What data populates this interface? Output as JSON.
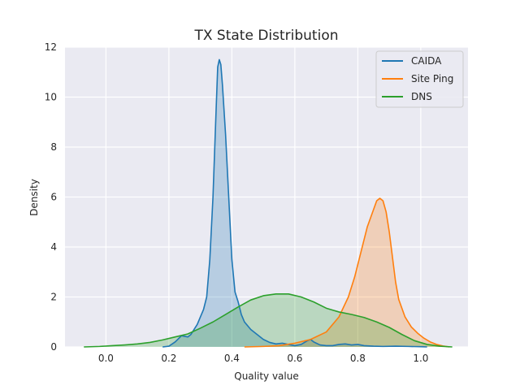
{
  "chart_data": {
    "type": "area",
    "title": "TX State Distribution",
    "xlabel": "Quality value",
    "ylabel": "Density",
    "xlim": [
      -0.13,
      1.15
    ],
    "ylim": [
      0,
      12
    ],
    "x_ticks": [
      "0.0",
      "0.2",
      "0.4",
      "0.6",
      "0.8",
      "1.0"
    ],
    "y_ticks": [
      "0",
      "2",
      "4",
      "6",
      "8",
      "10",
      "12"
    ],
    "grid": true,
    "legend_position": "top-right",
    "style": "seaborn darkgrid, filled KDE curves",
    "series": [
      {
        "name": "CAIDA",
        "color": "#1f77b4",
        "points": [
          [
            0.18,
            0.0
          ],
          [
            0.2,
            0.03
          ],
          [
            0.22,
            0.2
          ],
          [
            0.24,
            0.45
          ],
          [
            0.26,
            0.4
          ],
          [
            0.27,
            0.5
          ],
          [
            0.28,
            0.7
          ],
          [
            0.29,
            0.9
          ],
          [
            0.3,
            1.2
          ],
          [
            0.31,
            1.5
          ],
          [
            0.32,
            2.0
          ],
          [
            0.33,
            3.5
          ],
          [
            0.34,
            6.0
          ],
          [
            0.35,
            9.5
          ],
          [
            0.355,
            11.2
          ],
          [
            0.36,
            11.5
          ],
          [
            0.365,
            11.3
          ],
          [
            0.37,
            10.5
          ],
          [
            0.38,
            8.5
          ],
          [
            0.39,
            6.0
          ],
          [
            0.4,
            3.5
          ],
          [
            0.41,
            2.2
          ],
          [
            0.42,
            1.8
          ],
          [
            0.43,
            1.3
          ],
          [
            0.44,
            1.0
          ],
          [
            0.46,
            0.7
          ],
          [
            0.48,
            0.5
          ],
          [
            0.5,
            0.3
          ],
          [
            0.52,
            0.18
          ],
          [
            0.54,
            0.12
          ],
          [
            0.56,
            0.15
          ],
          [
            0.58,
            0.1
          ],
          [
            0.6,
            0.05
          ],
          [
            0.62,
            0.1
          ],
          [
            0.64,
            0.25
          ],
          [
            0.65,
            0.3
          ],
          [
            0.66,
            0.2
          ],
          [
            0.68,
            0.08
          ],
          [
            0.7,
            0.05
          ],
          [
            0.72,
            0.05
          ],
          [
            0.74,
            0.1
          ],
          [
            0.76,
            0.12
          ],
          [
            0.78,
            0.08
          ],
          [
            0.8,
            0.1
          ],
          [
            0.82,
            0.05
          ],
          [
            0.85,
            0.03
          ],
          [
            0.88,
            0.02
          ],
          [
            0.92,
            0.03
          ],
          [
            0.96,
            0.02
          ],
          [
            1.0,
            0.01
          ],
          [
            1.02,
            0.0
          ]
        ]
      },
      {
        "name": "Site Ping",
        "color": "#ff7f0e",
        "points": [
          [
            0.44,
            0.0
          ],
          [
            0.5,
            0.02
          ],
          [
            0.55,
            0.05
          ],
          [
            0.6,
            0.15
          ],
          [
            0.65,
            0.3
          ],
          [
            0.7,
            0.6
          ],
          [
            0.74,
            1.2
          ],
          [
            0.77,
            2.0
          ],
          [
            0.79,
            2.8
          ],
          [
            0.81,
            3.8
          ],
          [
            0.83,
            4.8
          ],
          [
            0.85,
            5.5
          ],
          [
            0.86,
            5.85
          ],
          [
            0.87,
            5.95
          ],
          [
            0.88,
            5.85
          ],
          [
            0.89,
            5.4
          ],
          [
            0.9,
            4.6
          ],
          [
            0.91,
            3.6
          ],
          [
            0.92,
            2.6
          ],
          [
            0.93,
            1.9
          ],
          [
            0.95,
            1.2
          ],
          [
            0.97,
            0.8
          ],
          [
            0.99,
            0.55
          ],
          [
            1.01,
            0.35
          ],
          [
            1.03,
            0.2
          ],
          [
            1.05,
            0.1
          ],
          [
            1.07,
            0.04
          ],
          [
            1.09,
            0.0
          ]
        ]
      },
      {
        "name": "DNS",
        "color": "#2ca02c",
        "points": [
          [
            -0.07,
            0.0
          ],
          [
            -0.02,
            0.02
          ],
          [
            0.02,
            0.05
          ],
          [
            0.06,
            0.08
          ],
          [
            0.1,
            0.12
          ],
          [
            0.14,
            0.18
          ],
          [
            0.18,
            0.28
          ],
          [
            0.22,
            0.4
          ],
          [
            0.26,
            0.52
          ],
          [
            0.3,
            0.75
          ],
          [
            0.34,
            1.0
          ],
          [
            0.38,
            1.3
          ],
          [
            0.42,
            1.6
          ],
          [
            0.46,
            1.88
          ],
          [
            0.5,
            2.05
          ],
          [
            0.54,
            2.12
          ],
          [
            0.58,
            2.12
          ],
          [
            0.62,
            2.0
          ],
          [
            0.66,
            1.8
          ],
          [
            0.7,
            1.55
          ],
          [
            0.74,
            1.4
          ],
          [
            0.78,
            1.3
          ],
          [
            0.82,
            1.18
          ],
          [
            0.86,
            1.0
          ],
          [
            0.9,
            0.78
          ],
          [
            0.94,
            0.5
          ],
          [
            0.98,
            0.25
          ],
          [
            1.02,
            0.1
          ],
          [
            1.06,
            0.03
          ],
          [
            1.1,
            0.0
          ]
        ]
      }
    ]
  }
}
